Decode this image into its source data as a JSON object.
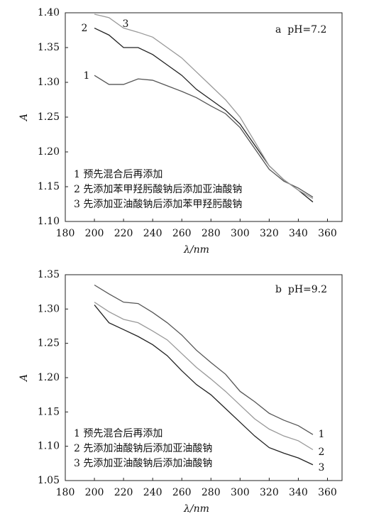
{
  "chart_data": [
    {
      "type": "line",
      "panel_label": "a  pH=7.2",
      "xlabel": "λ/nm",
      "ylabel": "A",
      "x": [
        200,
        210,
        220,
        230,
        240,
        250,
        260,
        270,
        280,
        290,
        300,
        310,
        320,
        330,
        340,
        350
      ],
      "xlim": [
        180,
        370
      ],
      "xticks": [
        180,
        200,
        220,
        240,
        260,
        280,
        300,
        320,
        340,
        360
      ],
      "ylim": [
        1.1,
        1.4
      ],
      "yticks": [
        {
          "value": 1.1,
          "label": "1.10"
        },
        1.15,
        {
          "value": 1.2,
          "label": "1.20"
        },
        1.25,
        {
          "value": 1.3,
          "label": "1.30"
        },
        1.35,
        {
          "value": 1.4,
          "label": "1.40"
        }
      ],
      "series": [
        {
          "name": "1 预先混合后再添加",
          "label": "1",
          "color": "#555555",
          "values": [
            1.31,
            1.297,
            1.297,
            1.305,
            1.303,
            1.295,
            1.287,
            1.278,
            1.266,
            1.255,
            1.235,
            1.205,
            1.175,
            1.158,
            1.148,
            1.135
          ]
        },
        {
          "name": "2 先添加苯甲羟肟酸钠后添加亚油酸钠",
          "label": "2",
          "color": "#222222",
          "values": [
            1.378,
            1.368,
            1.35,
            1.35,
            1.34,
            1.325,
            1.31,
            1.29,
            1.275,
            1.26,
            1.24,
            1.21,
            1.18,
            1.16,
            1.145,
            1.128
          ]
        },
        {
          "name": "3 先添加亚油酸钠后添加苯甲羟肟酸钠",
          "label": "3",
          "color": "#999999",
          "values": [
            1.398,
            1.393,
            1.378,
            1.372,
            1.365,
            1.35,
            1.335,
            1.315,
            1.295,
            1.275,
            1.25,
            1.215,
            1.18,
            1.16,
            1.145,
            1.133
          ]
        }
      ]
    },
    {
      "type": "line",
      "panel_label": "b  pH=9.2",
      "xlabel": "λ/nm",
      "ylabel": "A",
      "x": [
        200,
        210,
        220,
        230,
        240,
        250,
        260,
        270,
        280,
        290,
        300,
        310,
        320,
        330,
        340,
        350
      ],
      "xlim": [
        180,
        370
      ],
      "xticks": [
        180,
        200,
        220,
        240,
        260,
        280,
        300,
        320,
        340,
        360
      ],
      "ylim": [
        1.05,
        1.35
      ],
      "yticks": [
        1.05,
        {
          "value": 1.1,
          "label": "1.10"
        },
        1.15,
        {
          "value": 1.2,
          "label": "1.20"
        },
        1.25,
        {
          "value": 1.3,
          "label": "1.30"
        },
        1.35
      ],
      "series": [
        {
          "name": "1 预先混合后再添加",
          "label": "1",
          "color": "#555555",
          "values": [
            1.335,
            1.322,
            1.31,
            1.308,
            1.295,
            1.28,
            1.262,
            1.24,
            1.222,
            1.205,
            1.18,
            1.165,
            1.148,
            1.138,
            1.13,
            1.117
          ]
        },
        {
          "name": "2 先添加油酸钠后添加亚油酸钠",
          "label": "2",
          "color": "#999999",
          "values": [
            1.31,
            1.296,
            1.285,
            1.28,
            1.268,
            1.255,
            1.235,
            1.215,
            1.198,
            1.18,
            1.16,
            1.14,
            1.125,
            1.115,
            1.108,
            1.095
          ]
        },
        {
          "name": "3 先添加亚油酸钠后添加油酸钠",
          "label": "3",
          "color": "#222222",
          "values": [
            1.306,
            1.28,
            1.27,
            1.26,
            1.248,
            1.232,
            1.21,
            1.19,
            1.175,
            1.155,
            1.135,
            1.115,
            1.098,
            1.09,
            1.083,
            1.073
          ]
        }
      ]
    }
  ]
}
